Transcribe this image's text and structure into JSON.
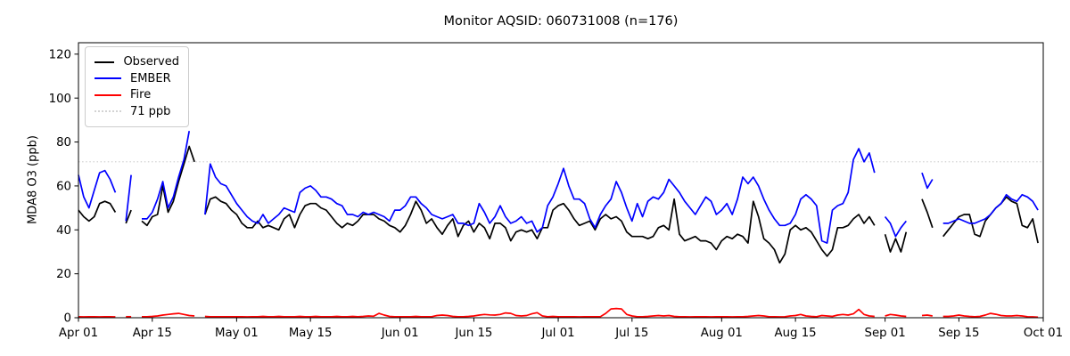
{
  "title": "Monitor AQSID: 060731008 (n=176)",
  "chart_data": {
    "type": "line",
    "title": "Monitor AQSID: 060731008 (n=176)",
    "xlabel": "",
    "ylabel": "MDA8 O3 (ppb)",
    "ylim": [
      0,
      125.2
    ],
    "grid": false,
    "legend_position": "upper-left",
    "n_label": "n=176",
    "x_start_label": "Apr 01",
    "x_end_label": "Oct 01",
    "n_days": 183,
    "x_tick_labels": [
      "Apr 01",
      "Apr 15",
      "May 01",
      "May 15",
      "Jun 01",
      "Jun 15",
      "Jul 01",
      "Jul 15",
      "Aug 01",
      "Aug 15",
      "Sep 01",
      "Sep 15",
      "Oct 01"
    ],
    "x_tick_days": [
      0,
      14,
      30,
      44,
      61,
      75,
      91,
      105,
      122,
      136,
      153,
      167,
      183
    ],
    "y_ticks": [
      0,
      20,
      40,
      60,
      80,
      100,
      120
    ],
    "threshold": {
      "label": "71 ppb",
      "value": 71,
      "color": "#d3d3d3",
      "style": "dotted"
    },
    "series": [
      {
        "name": "Observed",
        "color": "#000000",
        "values": [
          49,
          46,
          44,
          46,
          52,
          53,
          52,
          48,
          null,
          43,
          49,
          null,
          44,
          42,
          46,
          47,
          60,
          48,
          53,
          62,
          70,
          78,
          71,
          null,
          47,
          54,
          55,
          53,
          52,
          49,
          47,
          43,
          41,
          41,
          44,
          41,
          42,
          41,
          40,
          45,
          47,
          41,
          47,
          51,
          52,
          52,
          50,
          49,
          46,
          43,
          41,
          43,
          42,
          44,
          47,
          47,
          47,
          45,
          44,
          42,
          41,
          39,
          42,
          47,
          53,
          49,
          43,
          45,
          41,
          38,
          42,
          45,
          37,
          42,
          44,
          39,
          43,
          41,
          36,
          43,
          43,
          41,
          35,
          39,
          40,
          39,
          40,
          36,
          41,
          41,
          49,
          51,
          52,
          49,
          45,
          42,
          43,
          44,
          40,
          45,
          47,
          45,
          46,
          44,
          39,
          37,
          37,
          37,
          36,
          37,
          41,
          42,
          40,
          54,
          38,
          35,
          36,
          37,
          35,
          35,
          34,
          31,
          35,
          37,
          36,
          38,
          37,
          34,
          53,
          46,
          36,
          34,
          31,
          25,
          29,
          40,
          42,
          40,
          41,
          39,
          35,
          31,
          28,
          31,
          41,
          41,
          42,
          45,
          47,
          43,
          46,
          42,
          null,
          38,
          30,
          36,
          30,
          39,
          null,
          null,
          54,
          48,
          41,
          null,
          37,
          40,
          43,
          46,
          47,
          47,
          38,
          37,
          44,
          47,
          50,
          52,
          55,
          53,
          52,
          42,
          41,
          45,
          34
        ]
      },
      {
        "name": "EMBER",
        "color": "#0000ff",
        "values": [
          65,
          55,
          50,
          58,
          66,
          67,
          63,
          57,
          null,
          44,
          65,
          null,
          45,
          45,
          48,
          54,
          62,
          50,
          55,
          64,
          72,
          85,
          null,
          null,
          47,
          70,
          64,
          61,
          60,
          56,
          52,
          49,
          46,
          44,
          43,
          47,
          43,
          45,
          47,
          50,
          49,
          48,
          57,
          59,
          60,
          58,
          55,
          55,
          54,
          52,
          51,
          47,
          47,
          46,
          48,
          47,
          48,
          47,
          46,
          44,
          49,
          49,
          51,
          55,
          55,
          52,
          50,
          47,
          46,
          45,
          46,
          47,
          43,
          43,
          42,
          43,
          52,
          48,
          43,
          46,
          51,
          46,
          43,
          44,
          46,
          43,
          44,
          39,
          41,
          51,
          55,
          61,
          68,
          60,
          54,
          54,
          52,
          45,
          41,
          47,
          51,
          54,
          62,
          57,
          50,
          44,
          52,
          46,
          53,
          55,
          54,
          57,
          63,
          60,
          57,
          53,
          50,
          47,
          51,
          55,
          53,
          47,
          49,
          52,
          47,
          54,
          64,
          61,
          64,
          60,
          54,
          49,
          45,
          42,
          42,
          43,
          47,
          54,
          56,
          54,
          51,
          35,
          34,
          49,
          51,
          52,
          57,
          72,
          77,
          71,
          75,
          66,
          null,
          46,
          43,
          37,
          41,
          44,
          null,
          null,
          66,
          59,
          63,
          null,
          43,
          43,
          44,
          45,
          44,
          43,
          43,
          44,
          45,
          47,
          50,
          52,
          56,
          54,
          53,
          56,
          55,
          53,
          49
        ]
      },
      {
        "name": "Fire",
        "color": "#ff0000",
        "values": [
          0.5,
          0.4,
          0.5,
          0.5,
          0.4,
          0.5,
          0.5,
          0.4,
          null,
          0.5,
          0.5,
          null,
          0.5,
          0.5,
          0.6,
          0.8,
          1.2,
          1.5,
          1.8,
          2.0,
          1.5,
          1.0,
          0.8,
          null,
          0.6,
          0.5,
          0.5,
          0.5,
          0.5,
          0.5,
          0.5,
          0.5,
          0.4,
          0.5,
          0.5,
          0.6,
          0.5,
          0.5,
          0.6,
          0.5,
          0.5,
          0.5,
          0.6,
          0.5,
          0.5,
          0.6,
          0.5,
          0.5,
          0.5,
          0.6,
          0.5,
          0.5,
          0.6,
          0.5,
          0.6,
          0.8,
          0.7,
          2.0,
          1.2,
          0.6,
          0.5,
          0.5,
          0.5,
          0.5,
          0.6,
          0.5,
          0.5,
          0.5,
          1.0,
          1.2,
          1.0,
          0.6,
          0.5,
          0.5,
          0.6,
          0.8,
          1.2,
          1.5,
          1.3,
          1.2,
          1.5,
          2.2,
          2.0,
          1.0,
          0.8,
          1.0,
          1.8,
          2.3,
          0.8,
          0.5,
          0.6,
          0.5,
          0.5,
          0.5,
          0.5,
          0.4,
          0.5,
          0.5,
          0.5,
          0.5,
          2.0,
          4.0,
          4.2,
          4.0,
          1.5,
          0.8,
          0.5,
          0.5,
          0.6,
          0.8,
          1.0,
          0.8,
          1.0,
          0.6,
          0.5,
          0.5,
          0.4,
          0.5,
          0.5,
          0.5,
          0.4,
          0.5,
          0.5,
          0.5,
          0.4,
          0.5,
          0.5,
          0.6,
          0.8,
          1.0,
          0.8,
          0.5,
          0.5,
          0.4,
          0.5,
          0.8,
          1.0,
          1.5,
          0.8,
          0.6,
          0.5,
          1.0,
          0.8,
          0.6,
          1.2,
          1.5,
          1.2,
          1.8,
          3.8,
          1.5,
          0.8,
          0.6,
          null,
          0.8,
          1.5,
          1.2,
          0.8,
          0.6,
          null,
          null,
          1.0,
          1.2,
          0.8,
          null,
          0.6,
          0.6,
          0.8,
          1.2,
          0.8,
          0.6,
          0.5,
          0.6,
          1.2,
          2.0,
          1.6,
          1.0,
          0.8,
          0.8,
          1.0,
          0.8,
          0.5,
          0.4,
          0.3
        ]
      }
    ]
  }
}
